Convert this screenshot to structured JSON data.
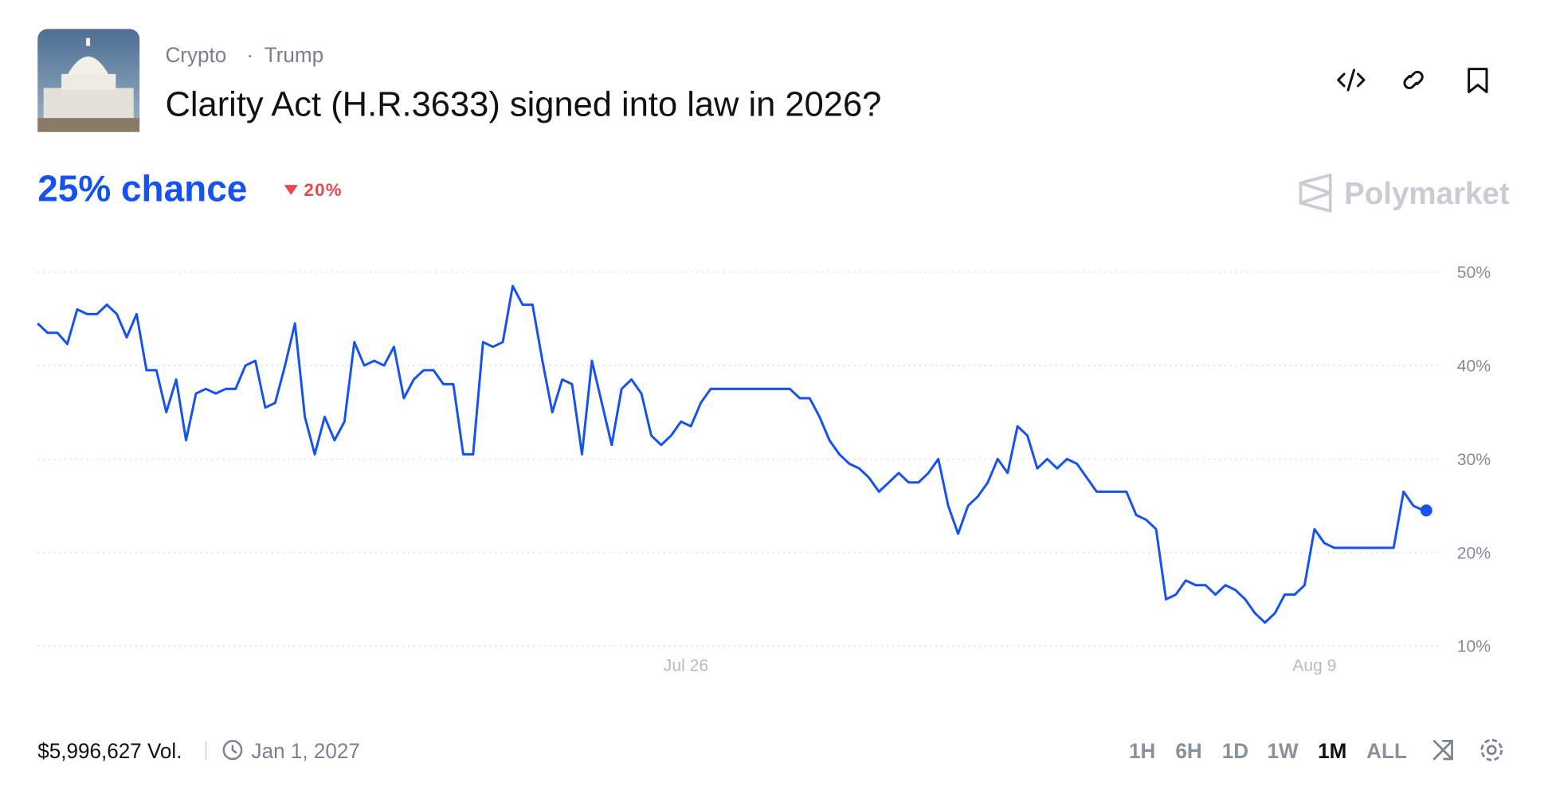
{
  "header": {
    "tags": [
      "Crypto",
      "Trump"
    ],
    "title": "Clarity Act (H.R.3633) signed into law in 2026?",
    "chance": "25% chance",
    "change": "20%",
    "brand": "Polymarket"
  },
  "chart_data": {
    "type": "line",
    "xlim": [
      0,
      140
    ],
    "ylim": [
      10,
      50
    ],
    "xticks": [
      {
        "value": 65.5,
        "label": "Jul 26"
      },
      {
        "value": 129,
        "label": "Aug 9"
      }
    ],
    "yticks": [
      {
        "value": 10,
        "label": "10%"
      },
      {
        "value": 20,
        "label": "20%"
      },
      {
        "value": 30,
        "label": "30%"
      },
      {
        "value": 40,
        "label": "40%"
      },
      {
        "value": 50,
        "label": "50%"
      }
    ],
    "grid": true,
    "series": [
      {
        "color": "#1652f0",
        "values": [
          44.5,
          43.5,
          43.5,
          42.3,
          46,
          45.5,
          45.5,
          46.5,
          45.5,
          43,
          45.5,
          39.5,
          39.5,
          35,
          38.5,
          32,
          37,
          37.5,
          37,
          37.5,
          37.5,
          40,
          40.5,
          35.5,
          36,
          40,
          44.5,
          34.5,
          30.5,
          34.5,
          32,
          34,
          42.5,
          40,
          40.5,
          40,
          42,
          36.5,
          38.5,
          39.5,
          39.5,
          38,
          38,
          30.5,
          30.5,
          42.5,
          42,
          42.5,
          48.5,
          46.5,
          46.5,
          40.5,
          35,
          38.5,
          38,
          30.5,
          40.5,
          36,
          31.5,
          37.5,
          38.5,
          37,
          32.5,
          31.5,
          32.5,
          34,
          33.5,
          36,
          37.5,
          37.5,
          37.5,
          37.5,
          37.5,
          37.5,
          37.5,
          37.5,
          37.5,
          36.5,
          36.5,
          34.5,
          32,
          30.5,
          29.5,
          29,
          28,
          26.5,
          27.5,
          28.5,
          27.5,
          27.5,
          28.5,
          30,
          25,
          22,
          25,
          26,
          27.5,
          30,
          28.5,
          33.5,
          32.5,
          29,
          30,
          29,
          30,
          29.5,
          28,
          26.5,
          26.5,
          26.5,
          26.5,
          24,
          23.5,
          22.5,
          15,
          15.5,
          17,
          16.5,
          16.5,
          15.5,
          16.5,
          16,
          15,
          13.5,
          12.5,
          13.5,
          15.5,
          15.5,
          16.5,
          22.5,
          21,
          20.5,
          20.5,
          20.5,
          20.5,
          20.5,
          20.5,
          20.5,
          26.5,
          25,
          24.5
        ]
      }
    ]
  },
  "footer": {
    "volume": "$5,996,627 Vol.",
    "end_date": "Jan 1, 2027",
    "ranges": [
      "1H",
      "6H",
      "1D",
      "1W",
      "1M",
      "ALL"
    ],
    "active_range": "1M"
  }
}
